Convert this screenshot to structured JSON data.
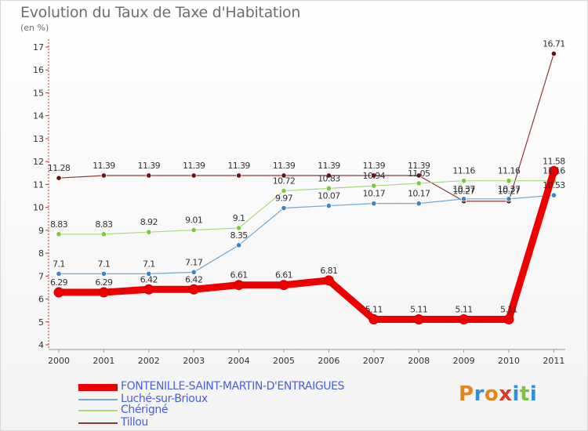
{
  "header": {
    "title": "Evolution du Taux de Taxe d'Habitation",
    "unit": "(en %)"
  },
  "logo": {
    "text": "Proxiti",
    "colors": [
      "#e8851a",
      "#2f8fd8",
      "#e8851a",
      "#d93a2a",
      "#2f8fd8",
      "#7cc242",
      "#2f8fd8"
    ]
  },
  "chart_data": {
    "type": "line",
    "title": "Evolution du Taux de Taxe d'Habitation",
    "ylabel": "(en %)",
    "xlabel": "",
    "ylim": [
      4,
      17
    ],
    "yticks": [
      4,
      5,
      6,
      7,
      8,
      9,
      10,
      11,
      12,
      13,
      14,
      15,
      16,
      17
    ],
    "x": [
      "2000",
      "2001",
      "2002",
      "2003",
      "2004",
      "2005",
      "2006",
      "2007",
      "2008",
      "2009",
      "2010",
      "2011"
    ],
    "grid": false,
    "legend": "bottom-left",
    "series": [
      {
        "name": "FONTENILLE-SAINT-MARTIN-D'ENTRAIGUES",
        "color": "#ee0000",
        "values": [
          6.29,
          6.29,
          6.42,
          6.42,
          6.61,
          6.61,
          6.81,
          5.11,
          5.11,
          5.11,
          5.11,
          11.58
        ],
        "labels": [
          "6.29",
          "6.29",
          "6.42",
          "6.42",
          "6.61",
          "6.61",
          "6.81",
          "5.11",
          "5.11",
          "5.11",
          "5.11",
          "11.58"
        ]
      },
      {
        "name": "Luché-sur-Brioux",
        "color": "#6fa8d6",
        "marker": "#3d84c4",
        "values": [
          7.1,
          7.1,
          7.1,
          7.17,
          8.35,
          9.97,
          10.07,
          10.17,
          10.17,
          10.37,
          10.37,
          10.53
        ],
        "labels": [
          "7.1",
          "7.1",
          "7.1",
          "7.17",
          "8.35",
          "9.97",
          "10.07",
          "10.17",
          "10.17",
          "10.37",
          "10.37",
          "10.53"
        ]
      },
      {
        "name": "Chérigné",
        "color": "#a4dc7a",
        "marker": "#7cc83e",
        "values": [
          8.83,
          8.83,
          8.92,
          9.01,
          9.1,
          10.72,
          10.83,
          10.94,
          11.05,
          11.16,
          11.16,
          11.16
        ],
        "labels": [
          "8.83",
          "8.83",
          "8.92",
          "9.01",
          "9.1",
          "10.72",
          "10.83",
          "10.94",
          "11.05",
          "11.16",
          "11.16",
          "11.16"
        ]
      },
      {
        "name": "Tillou",
        "color": "#8b3a3a",
        "marker": "#6a1414",
        "values": [
          11.28,
          11.39,
          11.39,
          11.39,
          11.39,
          11.39,
          11.39,
          11.39,
          11.39,
          10.27,
          10.27,
          16.71
        ],
        "labels": [
          "11.28",
          "11.39",
          "11.39",
          "11.39",
          "11.39",
          "11.39",
          "11.39",
          "11.39",
          "11.39",
          "10.27",
          "10.27",
          "16.71"
        ]
      }
    ]
  }
}
